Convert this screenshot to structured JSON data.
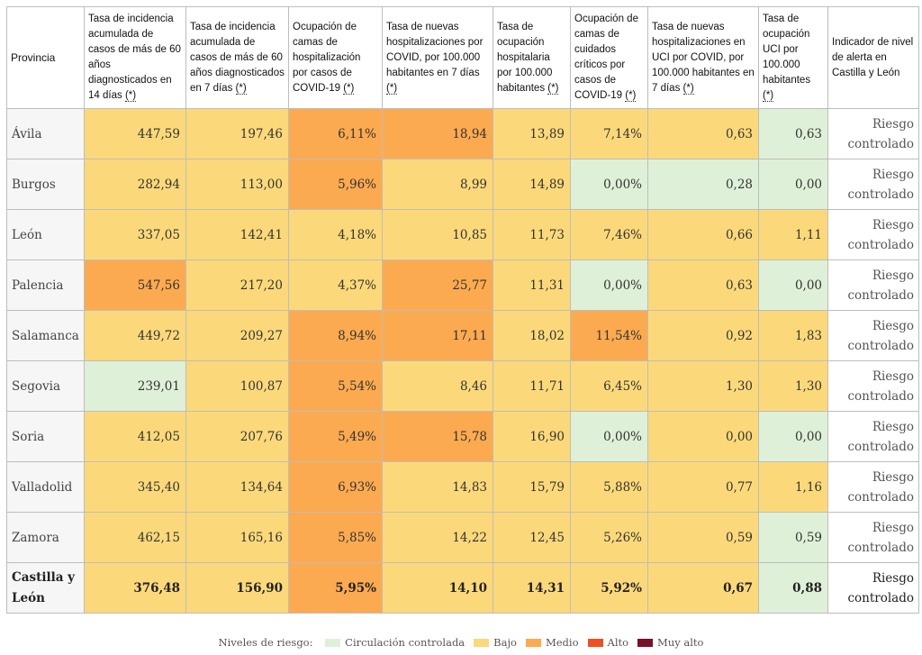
{
  "table": {
    "headers": [
      "Provincia",
      "Tasa de incidencia acumulada de casos de más de 60 años diagnosticados en 14 días",
      "Tasa de incidencia acumulada de casos de más de 60 años diagnosticados en 7 días",
      "Ocupación de camas de hospitalización por casos de COVID-19",
      "Tasa de nuevas hospitalizaciones por COVID, por 100.000 habitantes en 7 días",
      "Tasa de ocupación hospitalaria por 100.000 habitantes",
      "Ocupación de camas de cuidados críticos por casos de COVID-19",
      "Tasa de nuevas hospitalizaciones en UCI por COVID, por 100.000 habitantes en 7 días",
      "Tasa de ocupación UCI por 100.000 habitantes",
      "Indicador de nivel de alerta en Castilla y León"
    ],
    "note_marker": "(*)",
    "rows": [
      {
        "name": "Ávila",
        "values": [
          "447,59",
          "197,46",
          "6,11%",
          "18,94",
          "13,89",
          "7,14%",
          "0,63",
          "0,63"
        ],
        "levels": [
          "y",
          "y",
          "o",
          "o",
          "y",
          "y",
          "y",
          "g"
        ],
        "alert": "Riesgo controlado"
      },
      {
        "name": "Burgos",
        "values": [
          "282,94",
          "113,00",
          "5,96%",
          "8,99",
          "14,89",
          "0,00%",
          "0,28",
          "0,00"
        ],
        "levels": [
          "y",
          "y",
          "o",
          "y",
          "y",
          "g",
          "g",
          "g"
        ],
        "alert": "Riesgo controlado"
      },
      {
        "name": "León",
        "values": [
          "337,05",
          "142,41",
          "4,18%",
          "10,85",
          "11,73",
          "7,46%",
          "0,66",
          "1,11"
        ],
        "levels": [
          "y",
          "y",
          "y",
          "y",
          "y",
          "y",
          "y",
          "y"
        ],
        "alert": "Riesgo controlado"
      },
      {
        "name": "Palencia",
        "values": [
          "547,56",
          "217,20",
          "4,37%",
          "25,77",
          "11,31",
          "0,00%",
          "0,63",
          "0,00"
        ],
        "levels": [
          "o",
          "y",
          "y",
          "o",
          "y",
          "g",
          "y",
          "g"
        ],
        "alert": "Riesgo controlado"
      },
      {
        "name": "Salamanca",
        "values": [
          "449,72",
          "209,27",
          "8,94%",
          "17,11",
          "18,02",
          "11,54%",
          "0,92",
          "1,83"
        ],
        "levels": [
          "y",
          "y",
          "o",
          "o",
          "y",
          "o",
          "y",
          "y"
        ],
        "alert": "Riesgo controlado"
      },
      {
        "name": "Segovia",
        "values": [
          "239,01",
          "100,87",
          "5,54%",
          "8,46",
          "11,71",
          "6,45%",
          "1,30",
          "1,30"
        ],
        "levels": [
          "g",
          "y",
          "o",
          "y",
          "y",
          "y",
          "y",
          "y"
        ],
        "alert": "Riesgo controlado"
      },
      {
        "name": "Soria",
        "values": [
          "412,05",
          "207,76",
          "5,49%",
          "15,78",
          "16,90",
          "0,00%",
          "0,00",
          "0,00"
        ],
        "levels": [
          "y",
          "y",
          "o",
          "o",
          "y",
          "g",
          "y",
          "g"
        ],
        "alert": "Riesgo controlado"
      },
      {
        "name": "Valladolid",
        "values": [
          "345,40",
          "134,64",
          "6,93%",
          "14,83",
          "15,79",
          "5,88%",
          "0,77",
          "1,16"
        ],
        "levels": [
          "y",
          "y",
          "o",
          "y",
          "y",
          "y",
          "y",
          "y"
        ],
        "alert": "Riesgo controlado"
      },
      {
        "name": "Zamora",
        "values": [
          "462,15",
          "165,16",
          "5,85%",
          "14,22",
          "12,45",
          "5,26%",
          "0,59",
          "0,59"
        ],
        "levels": [
          "y",
          "y",
          "o",
          "y",
          "y",
          "y",
          "y",
          "g"
        ],
        "alert": "Riesgo controlado"
      }
    ],
    "total": {
      "name": "Castilla y León",
      "values": [
        "376,48",
        "156,90",
        "5,95%",
        "14,10",
        "14,31",
        "5,92%",
        "0,67",
        "0,88"
      ],
      "levels": [
        "y",
        "y",
        "o",
        "y",
        "y",
        "y",
        "y",
        "g"
      ],
      "alert": "Riesgo controlado"
    }
  },
  "legend": {
    "label": "Niveles de riesgo:",
    "items": [
      {
        "label": "Circulación controlada",
        "color": "#dff0d8"
      },
      {
        "label": "Bajo",
        "color": "#fbd97a"
      },
      {
        "label": "Medio",
        "color": "#fcaa50"
      },
      {
        "label": "Alto",
        "color": "#f04e23"
      },
      {
        "label": "Muy alto",
        "color": "#7a0f2a"
      }
    ]
  }
}
